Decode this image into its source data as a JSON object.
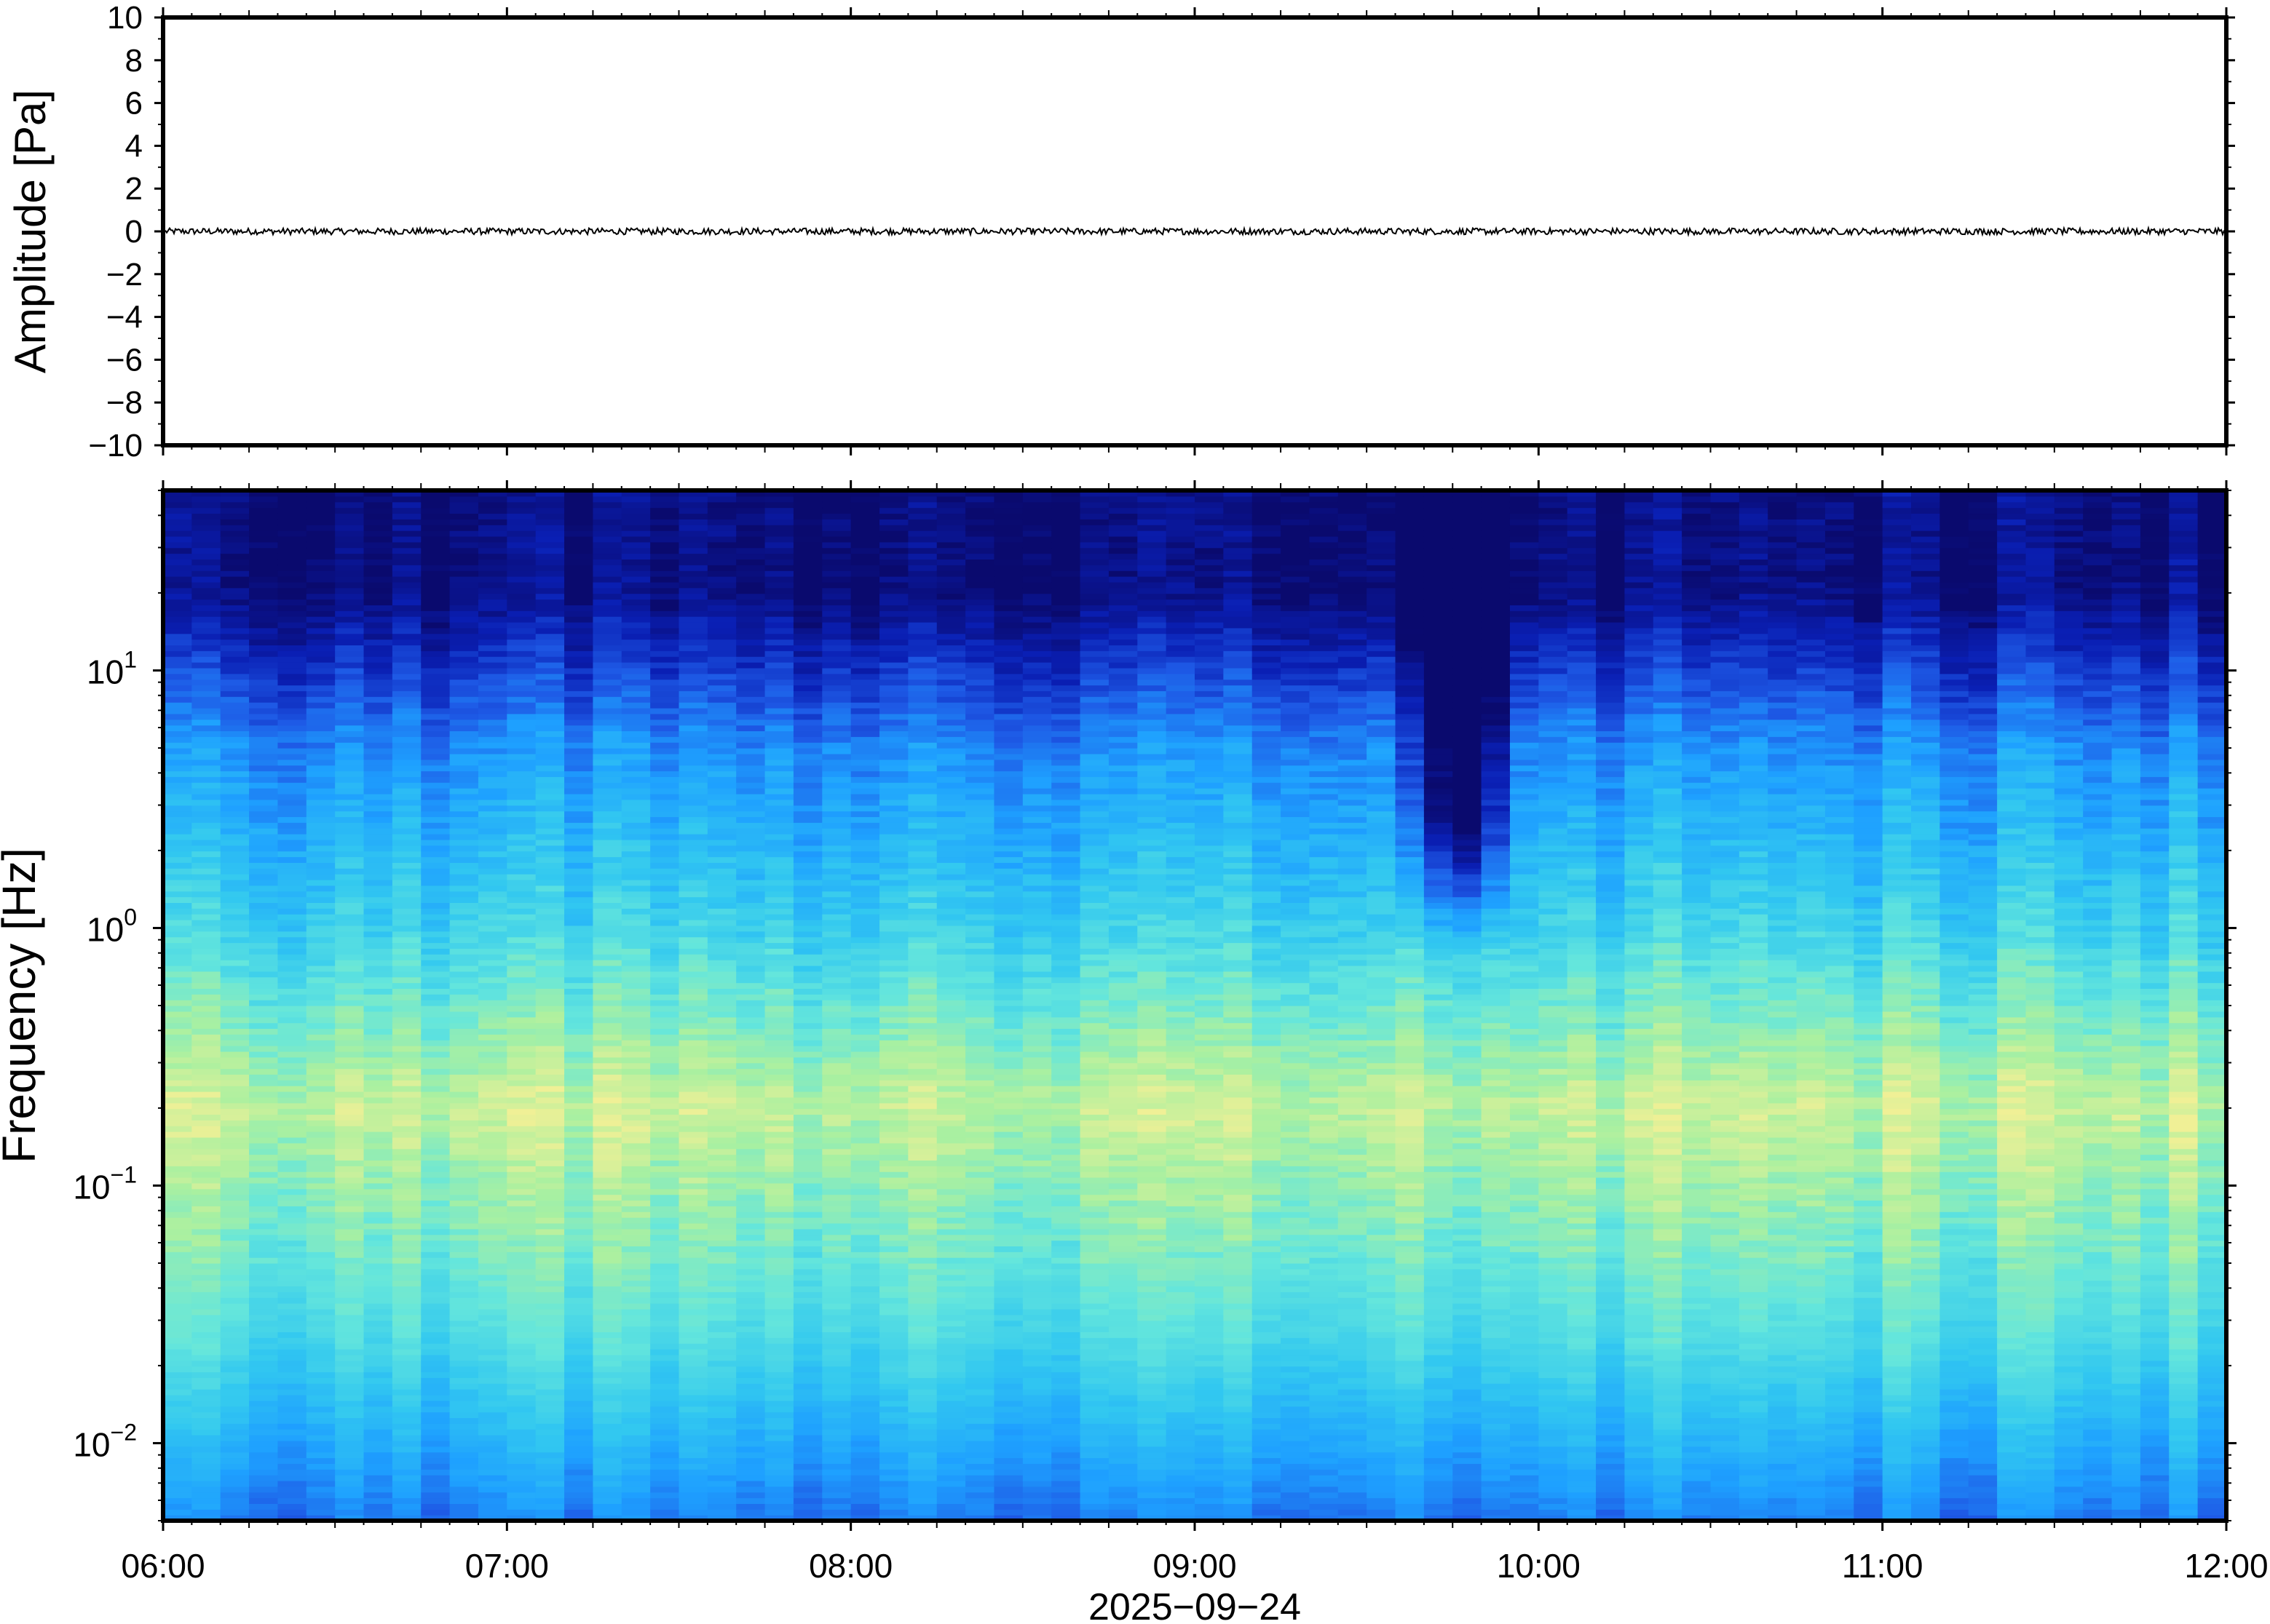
{
  "chart_data": [
    {
      "type": "line",
      "panel": "waveform",
      "ylabel": "Amplitude [Pa]",
      "ylim": [
        -10,
        10
      ],
      "yticks": [
        10,
        8,
        6,
        4,
        2,
        0,
        -2,
        -4,
        -6,
        -8,
        -10
      ],
      "ytick_labels": [
        "10",
        "8",
        "6",
        "4",
        "2",
        "0",
        "−2",
        "−4",
        "−6",
        "−8",
        "−10"
      ],
      "xlim": [
        "06:00",
        "12:00"
      ],
      "series": [
        {
          "description_level": "flat",
          "mean": 0,
          "peak_abs": 0.15
        }
      ],
      "grid": false
    },
    {
      "type": "heatmap",
      "panel": "spectrogram",
      "ylabel": "Frequency [Hz]",
      "yscale": "log",
      "ylim": [
        0.005,
        50
      ],
      "yticks": [
        0.01,
        0.1,
        1,
        10
      ],
      "ytick_labels": [
        {
          "base": "10",
          "exp": "−2"
        },
        {
          "base": "10",
          "exp": "−1"
        },
        {
          "base": "10",
          "exp": "0"
        },
        {
          "base": "10",
          "exp": "1"
        }
      ],
      "xlim": [
        "06:00",
        "12:00"
      ],
      "xtick_labels": [
        "06:00",
        "07:00",
        "08:00",
        "09:00",
        "10:00",
        "11:00",
        "12:00"
      ],
      "xlabel": "2025−09−24",
      "colormap": [
        "#0a0a6e",
        "#0a1fb4",
        "#1e5ae6",
        "#1ea0ff",
        "#32c8f0",
        "#64e6dc",
        "#aaf0a0",
        "#f0f096"
      ],
      "features": {
        "microbarom_band_hz": 0.2,
        "dropout_start": "09:37",
        "dropout_end": "09:55"
      },
      "grid": false
    }
  ]
}
